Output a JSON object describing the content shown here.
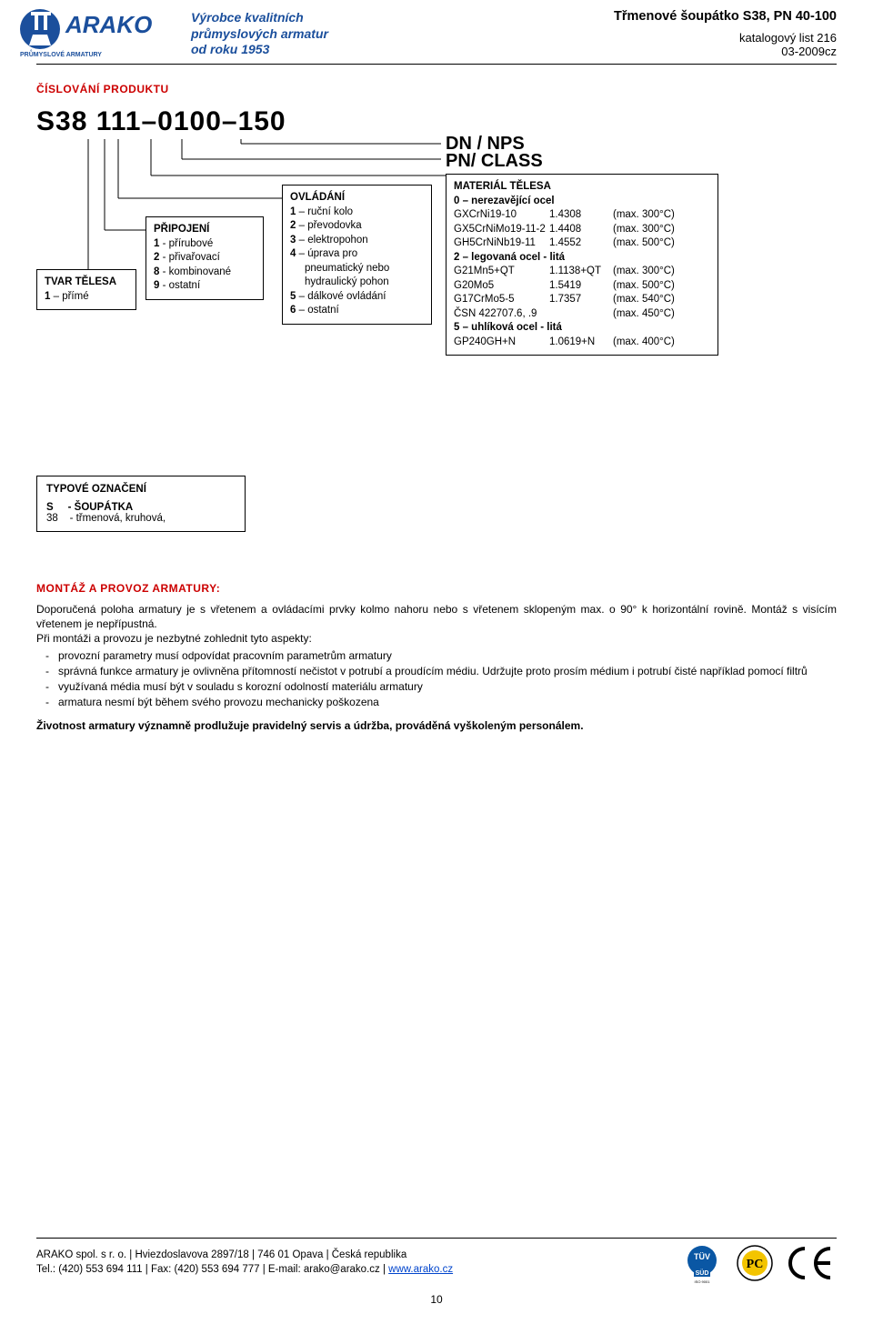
{
  "header": {
    "brand_name": "ARAKO",
    "brand_sub": "PRŮMYSLOVÉ ARMATURY",
    "brand_color": "#1b4f9c",
    "tagline_l1": "Výrobce kvalitních",
    "tagline_l2": "průmyslových armatur",
    "tagline_l3": "od roku 1953",
    "prod": "Třmenové šoupátko S38, PN 40-100",
    "cat1": "katalogový list 216",
    "cat2": "03-2009cz"
  },
  "section_title": "ČÍSLOVÁNÍ PRODUKTU",
  "code": "S38 111–0100–150",
  "dn_nps": "DN / NPS",
  "pn_class": "PN/ CLASS",
  "box_tvar": {
    "title": "TVAR TĚLESA",
    "lines": [
      "1 – přímé"
    ]
  },
  "box_pripoj": {
    "title": "PŘIPOJENÍ",
    "lines": [
      "1 - přírubové",
      "2 - přivařovací",
      "8 - kombinované",
      "9 - ostatní"
    ]
  },
  "box_ovlad": {
    "title": "OVLÁDÁNÍ",
    "lines": [
      "1 – ruční kolo",
      "2 – převodovka",
      "3 – elektropohon",
      "4 – úprava pro",
      "     pneumatický nebo",
      "     hydraulický pohon",
      "5 – dálkové ovládání",
      "6 – ostatní"
    ]
  },
  "box_mat": {
    "title": "MATERIÁL TĚLESA",
    "groups": [
      {
        "head": "0 – nerezavějící ocel",
        "rows": [
          [
            "GXCrNi19-10",
            "1.4308",
            "(max. 300°C)"
          ],
          [
            "GX5CrNiMo19-11-2",
            "1.4408",
            "(max. 300°C)"
          ],
          [
            "GH5CrNiNb19-11",
            "1.4552",
            "(max. 500°C)"
          ]
        ]
      },
      {
        "head": "2 – legovaná ocel - litá",
        "rows": [
          [
            "G21Mn5+QT",
            "1.1138+QT",
            "(max. 300°C)"
          ],
          [
            "G20Mo5",
            "1.5419",
            "(max. 500°C)"
          ],
          [
            "G17CrMo5-5",
            "1.7357",
            "(max. 540°C)"
          ],
          [
            "ČSN 422707.6, .9",
            "",
            "(max. 450°C)"
          ]
        ]
      },
      {
        "head": "5 – uhlíková ocel - litá",
        "rows": [
          [
            "GP240GH+N",
            "1.0619+N",
            "(max. 400°C)"
          ]
        ]
      }
    ]
  },
  "typebox": {
    "title": "TYPOVÉ OZNAČENÍ",
    "l1_a": "S",
    "l1_b": "- ŠOUPÁTKA",
    "l2_a": " 38",
    "l2_b": "- třmenová, kruhová,"
  },
  "montaz": {
    "title": "MONTÁŽ A PROVOZ ARMATURY:",
    "p1": "Doporučená poloha armatury je s vřetenem a ovládacími prvky kolmo nahoru nebo s vřetenem sklopeným max. o 90° k horizontální rovině. Montáž s visícím vřetenem je nepřípustná.",
    "p2": "Při montáži a provozu je nezbytné zohlednit tyto aspekty:",
    "bullets": [
      "provozní parametry musí odpovídat pracovním parametrům armatury",
      "správná funkce armatury je ovlivněna přítomností nečistot v potrubí a proudícím médiu. Udržujte proto prosím médium i potrubí čisté například pomocí filtrů",
      "využívaná média musí být v souladu s korozní odolností materiálu armatury",
      "armatura nesmí být během svého provozu mechanicky poškozena"
    ],
    "p3": "Životnost armatury významně prodlužuje pravidelný servis a údržba, prováděná vyškoleným personálem."
  },
  "footer": {
    "l1": "ARAKO spol. s r. o. | Hviezdoslavova 2897/18 | 746 01 Opava | Česká republika",
    "l2a": "Tel.: (420) 553 694 111 | Fax: (420) 553 694 777 | E-mail: arako@arako.cz | ",
    "l2b": "www.arako.cz",
    "pnum": "10"
  },
  "colors": {
    "red": "#cc0000",
    "blue": "#1b4f9c",
    "tuv_blue": "#0a57a4",
    "gost_yellow": "#f3c400"
  }
}
